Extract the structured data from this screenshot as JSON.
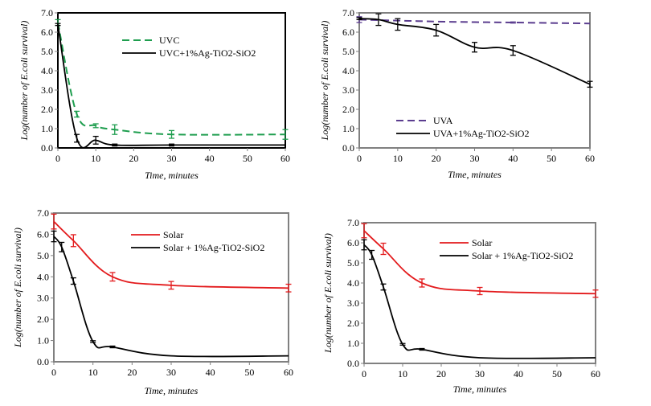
{
  "chart_data": [
    {
      "type": "line",
      "panel": "top-left",
      "xlabel": "Time, minutes",
      "ylabel": "Log(number of E.coli survival)",
      "xlim": [
        0,
        60
      ],
      "ylim": [
        0,
        7
      ],
      "xticks": [
        "0",
        "10",
        "20",
        "30",
        "40",
        "50",
        "60"
      ],
      "yticks": [
        "0.0",
        "1.0",
        "2.0",
        "3.0",
        "4.0",
        "5.0",
        "6.0",
        "7.0"
      ],
      "legend_position": "top-center",
      "frame_color": "#000000",
      "series": [
        {
          "name": "UVC",
          "color": "#1f9e4f",
          "style": "dashed",
          "x": [
            0,
            5,
            10,
            15,
            30,
            60
          ],
          "y": [
            6.5,
            1.75,
            1.15,
            0.95,
            0.7,
            0.7
          ],
          "err": [
            0.15,
            0.15,
            0.1,
            0.25,
            0.2,
            0.25
          ]
        },
        {
          "name": "UVC+1%Ag-TiO2-SiO2",
          "color": "#000000",
          "style": "solid",
          "x": [
            0,
            5,
            10,
            15,
            30,
            60
          ],
          "y": [
            6.4,
            0.5,
            0.4,
            0.15,
            0.15,
            0.15
          ],
          "err": [
            0.05,
            0.2,
            0.2,
            0.05,
            0.05,
            0.0
          ]
        }
      ]
    },
    {
      "type": "line",
      "panel": "top-right",
      "xlabel": "Time, minutes",
      "ylabel": "Log(number of E.coli survival)",
      "xlim": [
        0,
        60
      ],
      "ylim": [
        0,
        7
      ],
      "xticks": [
        "0",
        "10",
        "20",
        "30",
        "40",
        "50",
        "60"
      ],
      "yticks": [
        "0.0",
        "1.0",
        "2.0",
        "3.0",
        "4.0",
        "5.0",
        "6.0",
        "7.0"
      ],
      "legend_position": "bottom-center",
      "frame_color": "#808080",
      "series": [
        {
          "name": "UVA",
          "color": "#5b3d8f",
          "style": "dashed",
          "x": [
            0,
            10,
            20,
            30,
            40,
            60
          ],
          "y": [
            6.65,
            6.6,
            6.55,
            6.52,
            6.5,
            6.45
          ],
          "err": [
            0.15,
            0.0,
            0.0,
            0.0,
            0.03,
            0.0
          ]
        },
        {
          "name": "UVA+1%Ag-TiO2-SiO2",
          "color": "#000000",
          "style": "solid",
          "x": [
            0,
            5,
            10,
            20,
            30,
            40,
            60
          ],
          "y": [
            6.7,
            6.65,
            6.4,
            6.1,
            5.22,
            5.05,
            3.3
          ],
          "err": [
            0.05,
            0.3,
            0.3,
            0.3,
            0.25,
            0.25,
            0.15
          ]
        }
      ]
    },
    {
      "type": "line",
      "panel": "bottom-left",
      "xlabel": "Time, minutes",
      "ylabel": "Log(number of E.coli survival)",
      "xlim": [
        0,
        60
      ],
      "ylim": [
        0,
        7
      ],
      "xticks": [
        "0",
        "10",
        "20",
        "30",
        "40",
        "50",
        "60"
      ],
      "yticks": [
        "0.0",
        "1.0",
        "2.0",
        "3.0",
        "4.0",
        "5.0",
        "6.0",
        "7.0"
      ],
      "legend_position": "top-right",
      "frame_color": "#808080",
      "series": [
        {
          "name": "Solar",
          "color": "#e31a1c",
          "style": "solid",
          "x": [
            0,
            5,
            15,
            30,
            60
          ],
          "y": [
            6.6,
            5.7,
            4.0,
            3.6,
            3.47
          ],
          "err": [
            0.35,
            0.28,
            0.2,
            0.18,
            0.18
          ]
        },
        {
          "name": "Solar + 1%Ag-TiO2-SiO2",
          "color": "#000000",
          "style": "solid",
          "x": [
            0,
            2,
            5,
            10,
            15,
            30,
            60
          ],
          "y": [
            5.9,
            5.4,
            3.8,
            0.95,
            0.7,
            0.28,
            0.28
          ],
          "err": [
            0.25,
            0.22,
            0.15,
            0.04,
            0.04,
            0.0,
            0.0
          ]
        }
      ]
    },
    {
      "type": "line",
      "panel": "bottom-right",
      "xlabel": "Time, minutes",
      "ylabel": "Log(number of E.coli survival)",
      "xlim": [
        0,
        60
      ],
      "ylim": [
        0,
        7
      ],
      "xticks": [
        "0",
        "10",
        "20",
        "30",
        "40",
        "50",
        "60"
      ],
      "yticks": [
        "0.0",
        "1.0",
        "2.0",
        "3.0",
        "4.0",
        "5.0",
        "6.0",
        "7.0"
      ],
      "legend_position": "top-right",
      "frame_color": "#808080",
      "series": [
        {
          "name": "Solar",
          "color": "#e31a1c",
          "style": "solid",
          "x": [
            0,
            5,
            15,
            30,
            60
          ],
          "y": [
            6.6,
            5.7,
            4.0,
            3.6,
            3.47
          ],
          "err": [
            0.35,
            0.28,
            0.2,
            0.18,
            0.18
          ]
        },
        {
          "name": "Solar + 1%Ag-TiO2-SiO2",
          "color": "#000000",
          "style": "solid",
          "x": [
            0,
            2,
            5,
            10,
            15,
            30,
            60
          ],
          "y": [
            5.9,
            5.4,
            3.8,
            0.95,
            0.7,
            0.28,
            0.28
          ],
          "err": [
            0.25,
            0.22,
            0.15,
            0.04,
            0.04,
            0.0,
            0.0
          ]
        }
      ]
    }
  ]
}
